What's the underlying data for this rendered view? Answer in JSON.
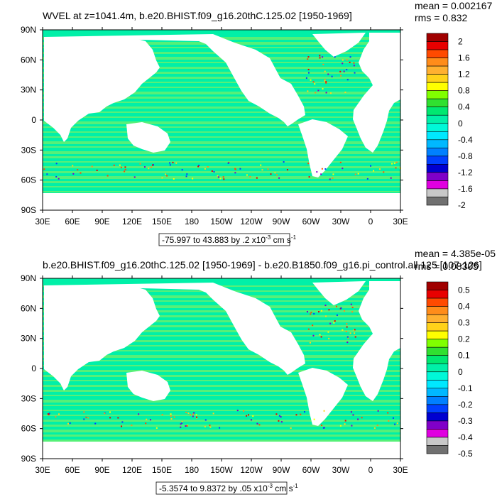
{
  "colors": {
    "ocean_base": "#00f0a8",
    "ocean_alt": "#6cf06c",
    "land": "#ffffff",
    "frame": "#000000"
  },
  "chart_data": [
    {
      "type": "heatmap",
      "title": "WVEL at z=1041.4m, b.e20.BHIST.f09_g16.20thC.125.02 [1950-1969]",
      "stats": {
        "mean": "mean = 0.002167",
        "rms": "rms = 0.832"
      },
      "x_ticks": [
        "30E",
        "60E",
        "90E",
        "120E",
        "150E",
        "180",
        "150W",
        "120W",
        "90W",
        "60W",
        "30W",
        "0",
        "30E"
      ],
      "y_ticks": [
        "90N",
        "60N",
        "30N",
        "0",
        "30S",
        "60S",
        "90S"
      ],
      "colorbar": {
        "labels": [
          "2",
          "1.6",
          "1.2",
          "0.8",
          "0.4",
          "0",
          "-0.4",
          "-0.8",
          "-1.2",
          "-1.6",
          "-2"
        ],
        "colors": [
          "#a00000",
          "#e80000",
          "#ff4a00",
          "#ff8c1a",
          "#ffb030",
          "#ffd21a",
          "#ffff00",
          "#80ff00",
          "#30e030",
          "#00e870",
          "#00f0a8",
          "#00f8d8",
          "#00e8ff",
          "#00b8ff",
          "#0080ff",
          "#0040ff",
          "#0000d0",
          "#8000c8",
          "#e000e0",
          "#c8c8c8",
          "#707070"
        ]
      },
      "range_label": "-75.997 to 43.883 by .2 x10",
      "range_exp": "-3",
      "range_unit": " cm s",
      "range_unit_exp": "-1"
    },
    {
      "type": "heatmap",
      "title": "b.e20.BHIST.f09_g16.20thC.125.02 [1950-1969] - b.e20.B1850.f09_g16.pi_control.all.125 [107-126]",
      "stats": {
        "mean": "mean = 4.385e-05",
        "rms": "rms = 0.08305"
      },
      "x_ticks": [
        "30E",
        "60E",
        "90E",
        "120E",
        "150E",
        "180",
        "150W",
        "120W",
        "90W",
        "60W",
        "30W",
        "0",
        "30E"
      ],
      "y_ticks": [
        "90N",
        "60N",
        "30N",
        "0",
        "30S",
        "60S",
        "90S"
      ],
      "colorbar": {
        "labels": [
          "0.5",
          "0.4",
          "0.3",
          "0.2",
          "0.1",
          "0",
          "-0.1",
          "-0.2",
          "-0.3",
          "-0.4",
          "-0.5"
        ],
        "colors": [
          "#a00000",
          "#e80000",
          "#ff4a00",
          "#ff8c1a",
          "#ffb030",
          "#ffd21a",
          "#ffff00",
          "#80ff00",
          "#30e030",
          "#00e870",
          "#00f0a8",
          "#00f8d8",
          "#00e8ff",
          "#00b8ff",
          "#0080ff",
          "#0040ff",
          "#0000d0",
          "#8000c8",
          "#e000e0",
          "#c8c8c8",
          "#707070"
        ]
      },
      "range_label": "-5.3574 to 9.8372 by .05 x10",
      "range_exp": "-3",
      "range_unit": " cm s",
      "range_unit_exp": "-1"
    }
  ]
}
